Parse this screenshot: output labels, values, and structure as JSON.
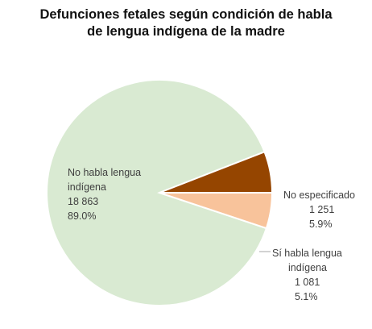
{
  "chart_data": {
    "type": "pie",
    "title_lines": [
      "Defunciones fetales según condición de habla",
      "de lengua indígena de la madre"
    ],
    "slices": [
      {
        "label_lines": [
          "No habla lengua",
          "indígena"
        ],
        "value": 18863,
        "value_text": "18 863",
        "percent": 89.0,
        "percent_text": "89.0%",
        "color": "#d9ead2"
      },
      {
        "label_lines": [
          "Sí habla lengua",
          "indígena"
        ],
        "value": 1081,
        "value_text": "1 081",
        "percent": 5.1,
        "percent_text": "5.1%",
        "color": "#f8c39b"
      },
      {
        "label_lines": [
          "No especificado"
        ],
        "value": 1251,
        "value_text": "1 251",
        "percent": 5.9,
        "percent_text": "5.9%",
        "color": "#954500"
      }
    ]
  }
}
